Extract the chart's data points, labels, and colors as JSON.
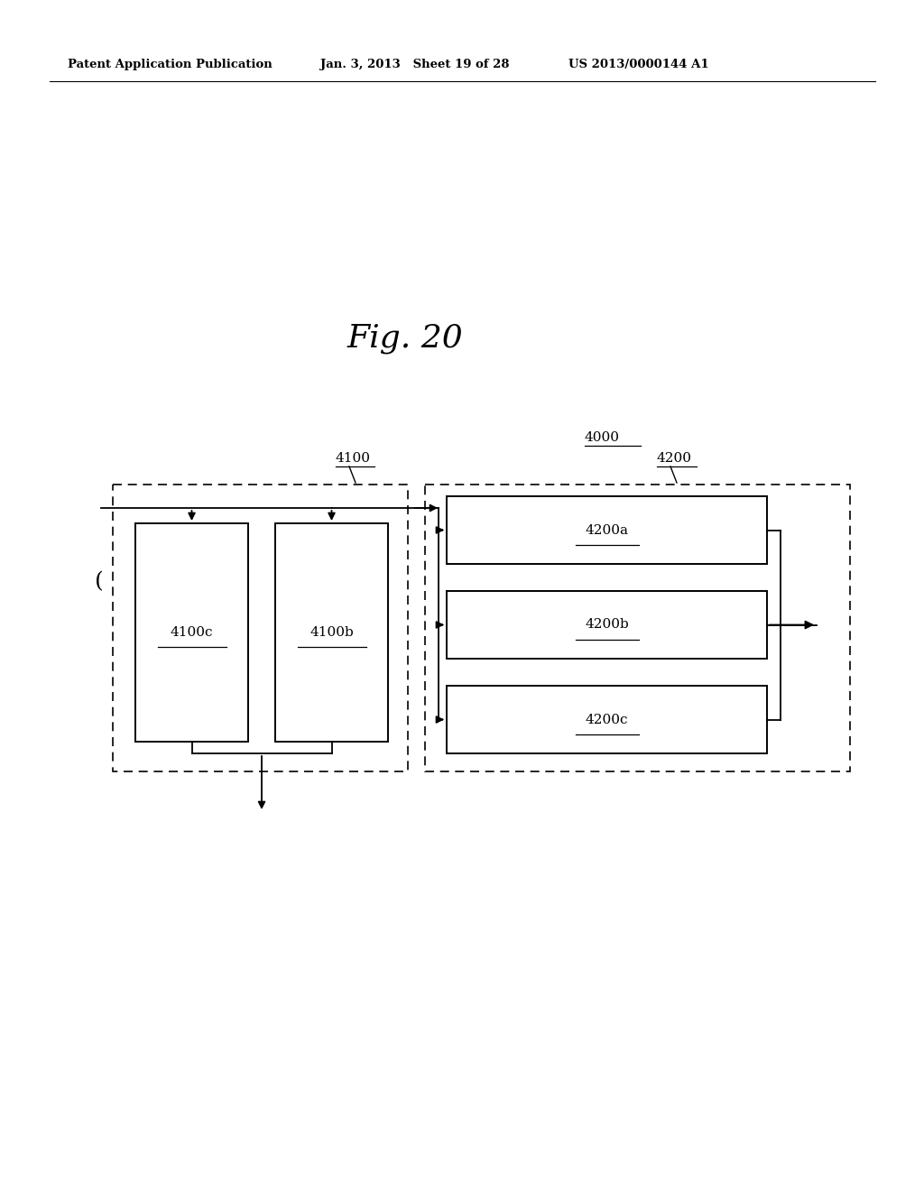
{
  "bg_color": "#ffffff",
  "header_left": "Patent Application Publication",
  "header_mid": "Jan. 3, 2013   Sheet 19 of 28",
  "header_right": "US 2013/0000144 A1",
  "fig_label": "Fig. 20",
  "label_4000": "4000",
  "label_4100": "4100",
  "label_4200": "4200",
  "label_4100b": "4100b",
  "label_4100c": "4100c",
  "label_4200a": "4200a",
  "label_4200b": "4200b",
  "label_4200c": "4200c"
}
